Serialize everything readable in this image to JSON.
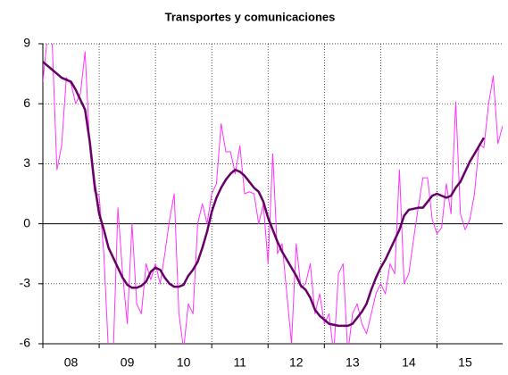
{
  "chart_data": {
    "type": "line",
    "title": "Transportes y comunicaciones",
    "x": [
      0,
      1,
      2,
      3,
      4,
      5,
      6,
      7,
      8,
      9,
      10,
      11,
      12,
      13,
      14,
      15,
      16,
      17,
      18,
      19,
      20,
      21,
      22,
      23,
      24,
      25,
      26,
      27,
      28,
      29,
      30,
      31,
      32,
      33,
      34,
      35,
      36,
      37,
      38,
      39,
      40,
      41,
      42,
      43,
      44,
      45,
      46,
      47,
      48,
      49,
      50,
      51,
      52,
      53,
      54,
      55,
      56,
      57,
      58,
      59,
      60,
      61,
      62,
      63,
      64,
      65,
      66,
      67,
      68,
      69,
      70,
      71,
      72,
      73,
      74,
      75,
      76,
      77,
      78,
      79,
      80,
      81,
      82,
      83,
      84,
      85,
      86,
      87,
      88,
      89,
      90,
      91,
      92,
      93,
      94,
      95,
      96,
      97,
      98
    ],
    "xlim": [
      0,
      98
    ],
    "xticks": [
      {
        "value": 0,
        "label": "08"
      },
      {
        "value": 12,
        "label": "09"
      },
      {
        "value": 24,
        "label": "10"
      },
      {
        "value": 36,
        "label": "11"
      },
      {
        "value": 48,
        "label": "12"
      },
      {
        "value": 60,
        "label": "13"
      },
      {
        "value": 72,
        "label": "14"
      },
      {
        "value": 84,
        "label": "15"
      }
    ],
    "ylim": [
      -6,
      9
    ],
    "yticks": [
      -6,
      -3,
      0,
      3,
      6,
      9
    ],
    "grid": true,
    "series": [
      {
        "color": "#ff33ff",
        "width": 1,
        "values": [
          7.1,
          9.4,
          9.0,
          2.7,
          3.9,
          7.3,
          7.0,
          6.0,
          6.5,
          8.6,
          3.8,
          1.6,
          1.4,
          -1.5,
          -6.5,
          -6.5,
          0.8,
          -2.5,
          -5.0,
          0.0,
          -4.0,
          -4.5,
          -2.0,
          -2.8,
          -2.0,
          -3.0,
          -1.5,
          0.2,
          1.5,
          -4.5,
          -6.3,
          -4.0,
          -4.5,
          0.0,
          1.0,
          0.0,
          1.5,
          2.0,
          5.0,
          3.6,
          3.6,
          2.5,
          3.9,
          1.5,
          1.6,
          1.5,
          0.0,
          1.0,
          -2.0,
          3.5,
          -1.5,
          -1.0,
          -3.5,
          -6.0,
          -1.0,
          -3.2,
          -3.0,
          -2.0,
          -4.5,
          -3.5,
          -5.0,
          -4.5,
          -6.5,
          -2.5,
          -2.0,
          -6.5,
          -4.5,
          -4.0,
          -5.0,
          -5.5,
          -4.5,
          -3.5,
          -3.0,
          -3.5,
          -2.0,
          -2.5,
          2.7,
          -3.0,
          -2.5,
          -0.8,
          0.8,
          2.3,
          2.3,
          0.2,
          -0.5,
          -0.2,
          2.0,
          0.5,
          6.1,
          0.5,
          -0.3,
          0.2,
          1.5,
          4.0,
          3.8,
          6.0,
          7.4,
          4.0,
          4.9
        ]
      },
      {
        "color": "#660066",
        "width": 2.5,
        "values": [
          8.1,
          7.9,
          7.7,
          7.5,
          7.3,
          7.2,
          7.1,
          6.7,
          6.2,
          5.7,
          4.1,
          2.0,
          0.5,
          -0.3,
          -1.2,
          -1.7,
          -2.2,
          -2.7,
          -3.05,
          -3.2,
          -3.2,
          -3.1,
          -2.9,
          -2.4,
          -2.2,
          -2.3,
          -2.7,
          -3.0,
          -3.15,
          -3.15,
          -3.05,
          -2.6,
          -2.3,
          -1.9,
          -1.2,
          -0.4,
          0.6,
          1.3,
          1.8,
          2.2,
          2.5,
          2.7,
          2.6,
          2.4,
          2.1,
          1.8,
          1.6,
          1.1,
          0.3,
          -0.3,
          -0.9,
          -1.4,
          -1.8,
          -2.2,
          -2.6,
          -3.1,
          -3.3,
          -3.7,
          -4.3,
          -4.6,
          -4.8,
          -5.0,
          -5.05,
          -5.1,
          -5.1,
          -5.1,
          -5.0,
          -4.7,
          -4.4,
          -4.0,
          -3.3,
          -2.7,
          -2.2,
          -1.8,
          -1.3,
          -0.8,
          -0.3,
          0.4,
          0.7,
          0.75,
          0.8,
          0.8,
          1.1,
          1.4,
          1.5,
          1.4,
          1.3,
          1.4,
          1.8,
          2.1,
          2.6,
          3.1,
          3.5,
          3.9,
          4.3,
          null,
          null,
          null,
          null
        ]
      }
    ]
  }
}
